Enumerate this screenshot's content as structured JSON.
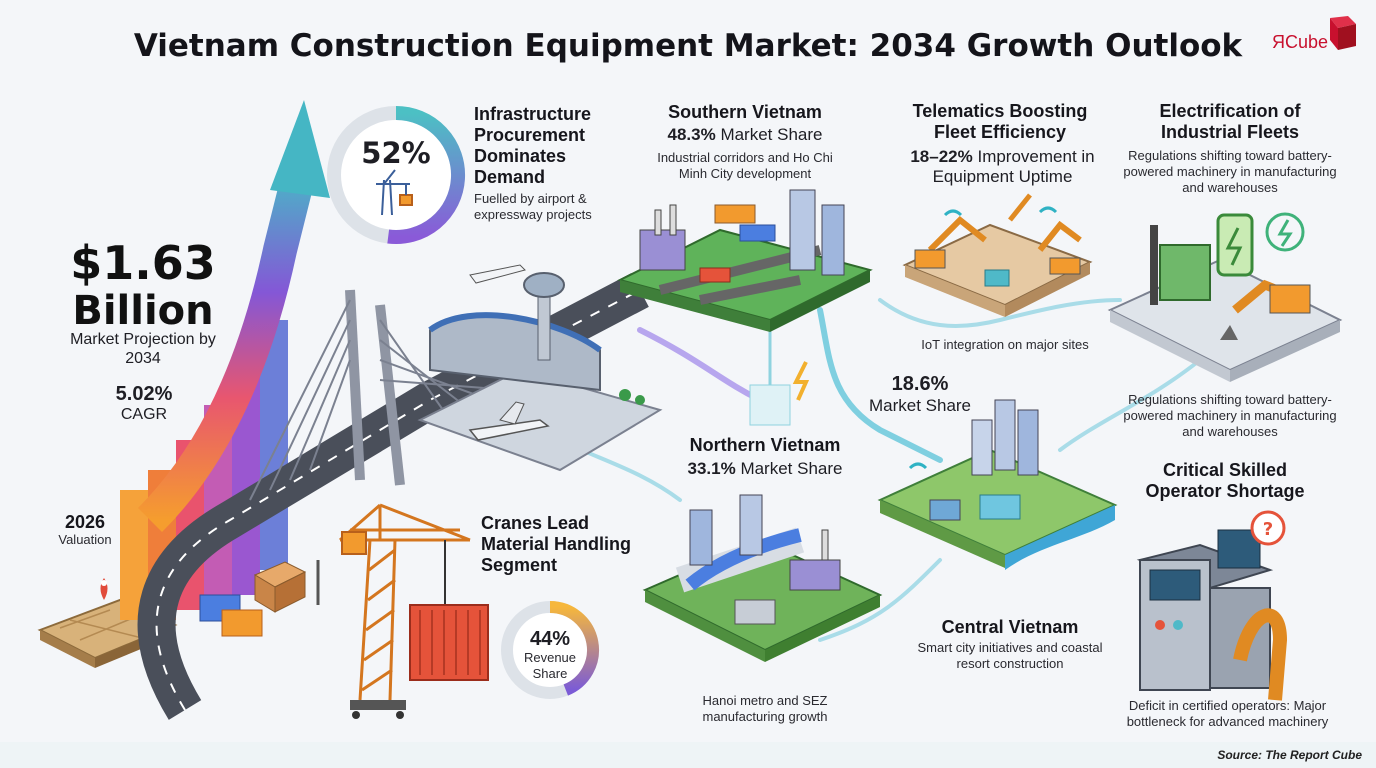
{
  "title": "Vietnam Construction Equipment Market: 2034 Growth Outlook",
  "logo": {
    "text": "Cube",
    "mark": "Я"
  },
  "market": {
    "value": "$1.63",
    "unit": "Billion",
    "label": "Market Projection by 2034",
    "cagr": "5.02%",
    "cagr_label": "CAGR",
    "base_year": "2026",
    "base_label": "Valuation"
  },
  "infrastructure": {
    "percent": "52%",
    "percent_value": 52,
    "title": "Infrastructure Procurement Dominates Demand",
    "desc": "Fuelled by airport & expressway projects"
  },
  "cranes": {
    "title": "Cranes Lead Material Handling Segment",
    "percent": "44%",
    "percent_value": 44,
    "label": "Revenue Share"
  },
  "southern": {
    "title": "Southern Vietnam",
    "share": "48.3%",
    "share_label": "Market Share",
    "desc": "Industrial corridors and Ho Chi Minh City development"
  },
  "northern": {
    "title": "Northern Vietnam",
    "share": "33.1%",
    "share_label": "Market Share",
    "desc": "Hanoi metro and SEZ manufacturing growth"
  },
  "central": {
    "share": "18.6%",
    "share_label": "Market Share",
    "title": "Central Vietnam",
    "desc": "Smart city initiatives and coastal resort construction"
  },
  "telematics": {
    "title": "Telematics Boosting Fleet Efficiency",
    "value": "18–22%",
    "value_label": "Improvement in Equipment Uptime",
    "desc": "IoT integration on major sites"
  },
  "electrification": {
    "title": "Electrification of Industrial Fleets",
    "desc": "Regulations shifting toward battery-powered machinery in manufacturing and warehouses",
    "desc2": "Regulations shifting toward battery-powered machinery in manufacturing and warehouses"
  },
  "operators": {
    "title": "Critical Skilled Operator Shortage",
    "desc": "Deficit in certified operators: Major bottleneck for advanced machinery"
  },
  "source": "Source: The Report Cube",
  "colors": {
    "teal": "#4fb9c8",
    "purple": "#7b5bd6",
    "orange": "#f29a2e",
    "road": "#4a4f5a",
    "crane": "#e8862a"
  }
}
